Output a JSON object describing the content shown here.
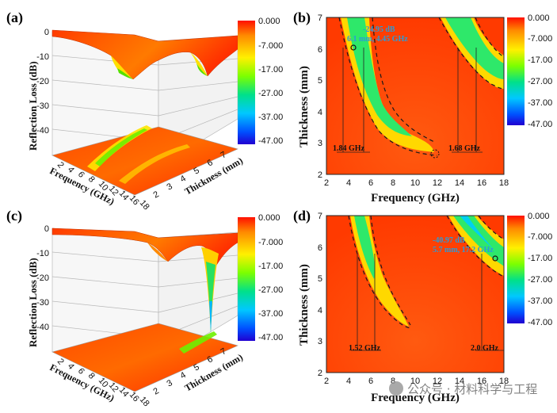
{
  "panels": {
    "a": {
      "label": "(a)"
    },
    "b": {
      "label": "(b)"
    },
    "c": {
      "label": "(c)"
    },
    "d": {
      "label": "(d)"
    }
  },
  "watermark": {
    "text": "公众号 · 材料科学与工程"
  },
  "chart_data": [
    {
      "type": "surface3d",
      "panel": "(a)",
      "zlabel": "Reflection Loss (dB)",
      "xlabel": "Frequency (GHz)",
      "ylabel": "Thickness (mm)",
      "z_ticks": [
        0,
        -10,
        -20,
        -30,
        -40
      ],
      "x_ticks": [
        2,
        4,
        6,
        8,
        10,
        12,
        14,
        16,
        18
      ],
      "y_ticks": [
        2,
        3,
        4,
        5,
        6,
        7
      ],
      "colorbar": [
        "0.000",
        "-7.000",
        "-17.00",
        "-27.00",
        "-37.00",
        "-47.00"
      ],
      "minima": [
        {
          "frequency": 4.6,
          "rl": -18
        },
        {
          "frequency": 12,
          "rl": -19
        }
      ]
    },
    {
      "type": "heatmap",
      "panel": "(b)",
      "xlabel": "Frequency (GHz)",
      "ylabel": "Thickness (mm)",
      "xlim": [
        2,
        18
      ],
      "ylim": [
        2,
        7
      ],
      "x_ticks": [
        2,
        4,
        6,
        8,
        10,
        12,
        14,
        16,
        18
      ],
      "y_ticks": [
        2,
        3,
        4,
        5,
        6,
        7
      ],
      "colorbar": [
        "0.000",
        "-7.000",
        "-17.00",
        "-27.00",
        "-37.00",
        "-47.00"
      ],
      "bands": [
        {
          "label": "1.84 GHz",
          "from": 3.4,
          "to": 5.24
        },
        {
          "label": "1.68 GHz",
          "from": 13.8,
          "to": 15.48
        }
      ],
      "annotation": {
        "lines": [
          "-24.95 dB",
          "6.1 mm, 4.45 GHz"
        ],
        "x": 4.45,
        "y": 6.1
      },
      "marker2": {
        "x": 11.7,
        "y": 2.65
      }
    },
    {
      "type": "surface3d",
      "panel": "(c)",
      "zlabel": "Reflection Loss (dB)",
      "xlabel": "Frequency (GHz)",
      "ylabel": "Thickness (mm)",
      "z_ticks": [
        0,
        -10,
        -20,
        -30,
        -40
      ],
      "x_ticks": [
        2,
        4,
        6,
        8,
        10,
        12,
        14,
        16,
        18
      ],
      "y_ticks": [
        2,
        3,
        4,
        5,
        6,
        7
      ],
      "colorbar": [
        "0.000",
        "-7.000",
        "-17.00",
        "-27.00",
        "-37.00",
        "-47.00"
      ],
      "minima": [
        {
          "frequency": 6,
          "rl": -10
        },
        {
          "frequency": 17,
          "rl": -40
        }
      ]
    },
    {
      "type": "heatmap",
      "panel": "(d)",
      "xlabel": "Frequency (GHz)",
      "ylabel": "Thickness (mm)",
      "xlim": [
        2,
        18
      ],
      "ylim": [
        2,
        7
      ],
      "x_ticks": [
        2,
        4,
        6,
        8,
        10,
        12,
        14,
        16,
        18
      ],
      "y_ticks": [
        2,
        3,
        4,
        5,
        6,
        7
      ],
      "colorbar": [
        "0.000",
        "-7.000",
        "-17.00",
        "-27.00",
        "-37.00",
        "-47.00"
      ],
      "bands": [
        {
          "label": "1.52 GHz",
          "from": 4.7,
          "to": 6.22
        },
        {
          "label": "2.0 GHz",
          "from": 16.0,
          "to": 18.0
        }
      ],
      "annotation": {
        "lines": [
          "-40.97 dB",
          "5.7 mm, 17.2 GHz"
        ],
        "x": 17.2,
        "y": 5.7
      }
    }
  ],
  "colors": {
    "scale": [
      "#ff1a00",
      "#ff8800",
      "#ffee00",
      "#7fff00",
      "#00e07a",
      "#00c8ff",
      "#0048ff",
      "#2200d0"
    ],
    "dash": "#1a1a1a",
    "annotation": "#2a9bd8"
  }
}
